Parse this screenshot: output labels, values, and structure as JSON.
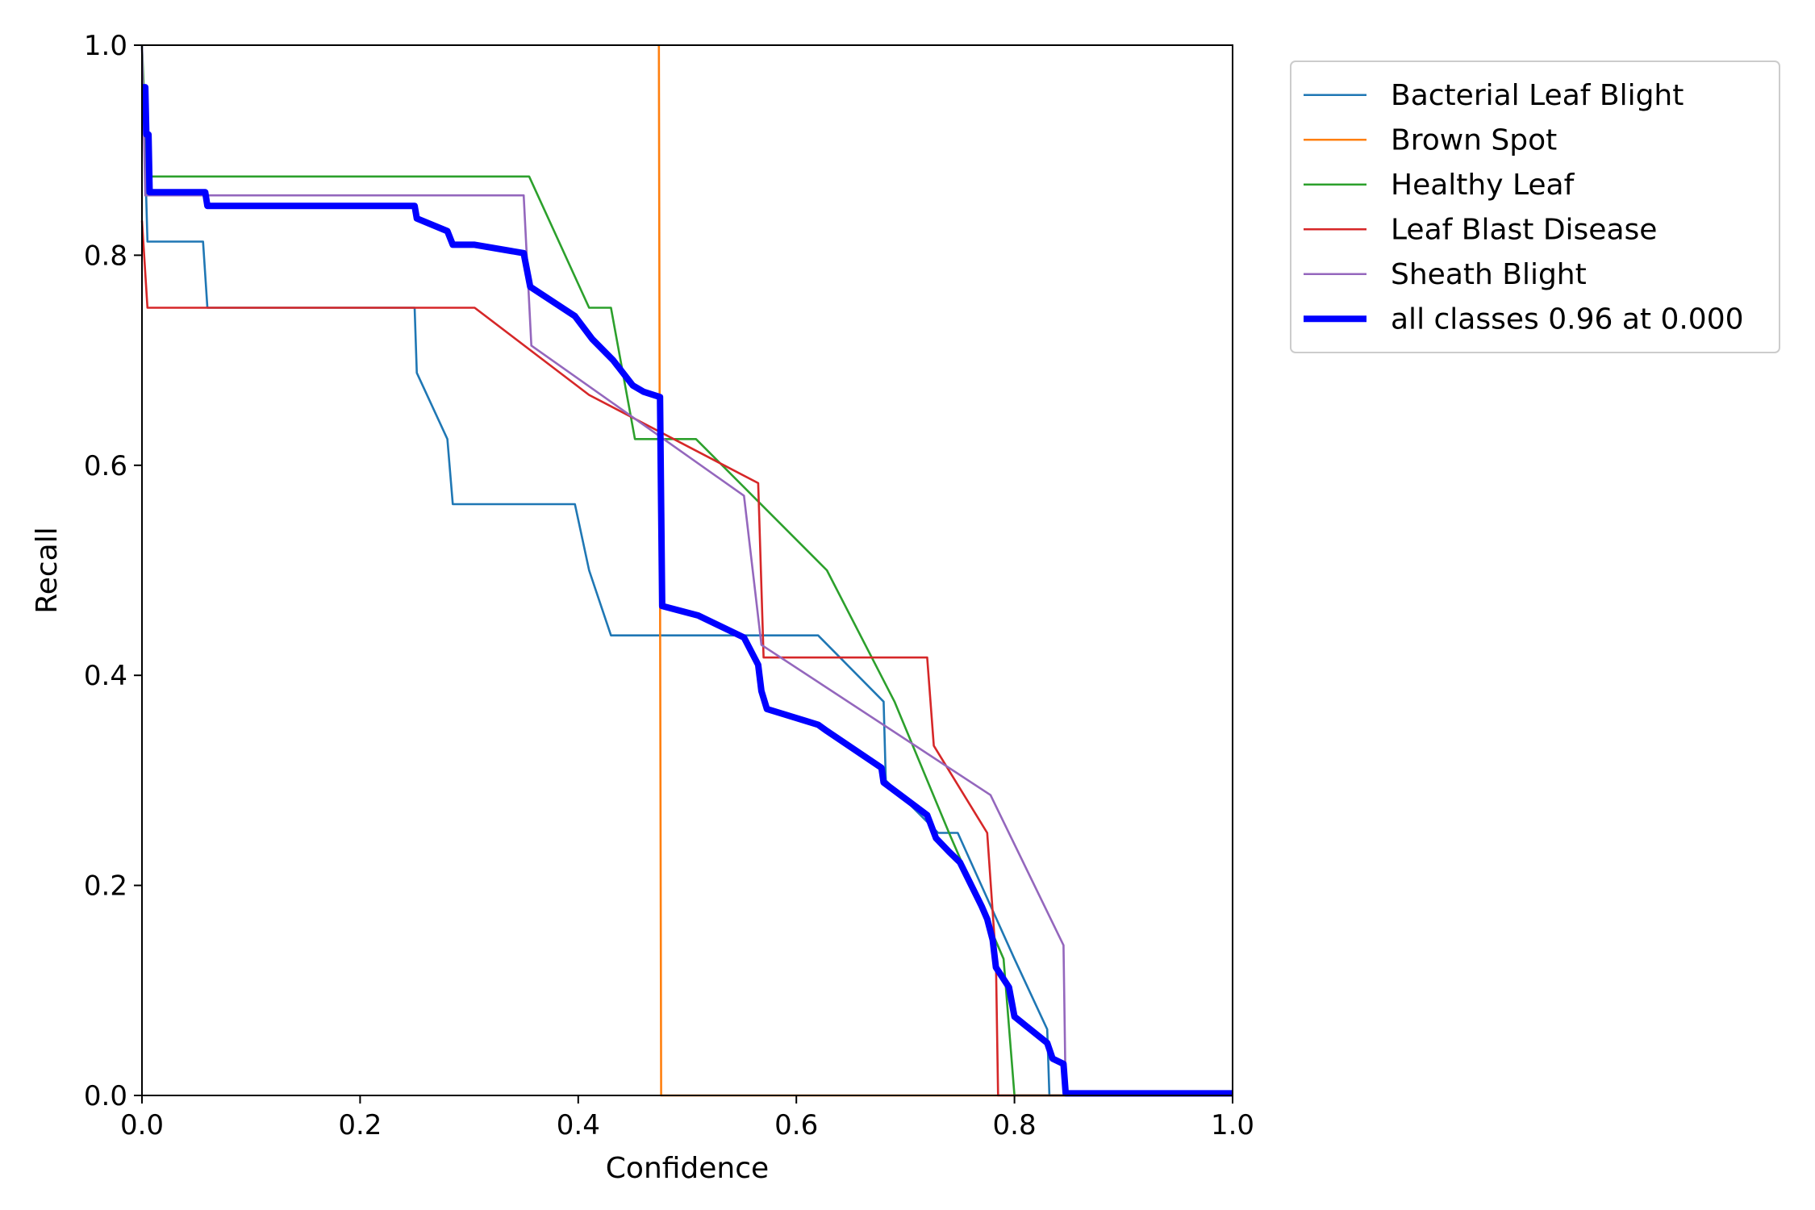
{
  "chart_data": {
    "type": "line",
    "title": "",
    "xlabel": "Confidence",
    "ylabel": "Recall",
    "xlim": [
      0.0,
      1.0
    ],
    "ylim": [
      0.0,
      1.0
    ],
    "grid": false,
    "legend_position": "outside-top-right",
    "x_ticks": [
      "0.0",
      "0.2",
      "0.4",
      "0.6",
      "0.8",
      "1.0"
    ],
    "y_ticks": [
      "0.0",
      "0.2",
      "0.4",
      "0.6",
      "0.8",
      "1.0"
    ],
    "series": [
      {
        "name": "Bacterial Leaf Blight",
        "color": "#1f77b4",
        "points": [
          [
            0.0,
            1.0
          ],
          [
            0.005,
            0.813
          ],
          [
            0.056,
            0.813
          ],
          [
            0.06,
            0.75
          ],
          [
            0.25,
            0.75
          ],
          [
            0.252,
            0.688
          ],
          [
            0.28,
            0.625
          ],
          [
            0.285,
            0.563
          ],
          [
            0.397,
            0.563
          ],
          [
            0.41,
            0.5
          ],
          [
            0.43,
            0.438
          ],
          [
            0.62,
            0.438
          ],
          [
            0.68,
            0.375
          ],
          [
            0.682,
            0.3
          ],
          [
            0.73,
            0.25
          ],
          [
            0.748,
            0.25
          ],
          [
            0.8,
            0.13
          ],
          [
            0.83,
            0.063
          ],
          [
            0.832,
            0.0
          ],
          [
            1.0,
            0.0
          ]
        ]
      },
      {
        "name": "Brown Spot",
        "color": "#ff7f0e",
        "points": [
          [
            0.474,
            1.0
          ],
          [
            0.476,
            0.0
          ],
          [
            1.0,
            0.0
          ]
        ]
      },
      {
        "name": "Healthy Leaf",
        "color": "#2ca02c",
        "points": [
          [
            0.0,
            1.0
          ],
          [
            0.005,
            0.875
          ],
          [
            0.355,
            0.875
          ],
          [
            0.41,
            0.75
          ],
          [
            0.43,
            0.75
          ],
          [
            0.452,
            0.625
          ],
          [
            0.508,
            0.625
          ],
          [
            0.628,
            0.5
          ],
          [
            0.69,
            0.375
          ],
          [
            0.74,
            0.25
          ],
          [
            0.79,
            0.13
          ],
          [
            0.8,
            0.0
          ],
          [
            1.0,
            0.0
          ]
        ]
      },
      {
        "name": "Leaf Blast Disease",
        "color": "#d62728",
        "points": [
          [
            0.0,
            0.833
          ],
          [
            0.005,
            0.75
          ],
          [
            0.305,
            0.75
          ],
          [
            0.41,
            0.667
          ],
          [
            0.565,
            0.583
          ],
          [
            0.57,
            0.417
          ],
          [
            0.72,
            0.417
          ],
          [
            0.726,
            0.333
          ],
          [
            0.775,
            0.25
          ],
          [
            0.783,
            0.13
          ],
          [
            0.785,
            0.0
          ],
          [
            1.0,
            0.0
          ]
        ]
      },
      {
        "name": "Sheath Blight",
        "color": "#9467bd",
        "points": [
          [
            0.0,
            1.0
          ],
          [
            0.003,
            0.857
          ],
          [
            0.35,
            0.857
          ],
          [
            0.357,
            0.714
          ],
          [
            0.552,
            0.571
          ],
          [
            0.568,
            0.429
          ],
          [
            0.778,
            0.286
          ],
          [
            0.845,
            0.143
          ],
          [
            0.847,
            0.0
          ],
          [
            1.0,
            0.0
          ]
        ]
      },
      {
        "name": "all classes 0.96 at 0.000",
        "color": "#0000ff",
        "thick": true,
        "points": [
          [
            0.0,
            0.96
          ],
          [
            0.003,
            0.96
          ],
          [
            0.004,
            0.915
          ],
          [
            0.006,
            0.915
          ],
          [
            0.007,
            0.86
          ],
          [
            0.058,
            0.86
          ],
          [
            0.06,
            0.847
          ],
          [
            0.25,
            0.847
          ],
          [
            0.252,
            0.835
          ],
          [
            0.28,
            0.823
          ],
          [
            0.285,
            0.81
          ],
          [
            0.305,
            0.81
          ],
          [
            0.35,
            0.802
          ],
          [
            0.356,
            0.77
          ],
          [
            0.397,
            0.742
          ],
          [
            0.413,
            0.72
          ],
          [
            0.432,
            0.7
          ],
          [
            0.45,
            0.676
          ],
          [
            0.46,
            0.67
          ],
          [
            0.475,
            0.665
          ],
          [
            0.477,
            0.466
          ],
          [
            0.51,
            0.457
          ],
          [
            0.552,
            0.436
          ],
          [
            0.565,
            0.41
          ],
          [
            0.568,
            0.385
          ],
          [
            0.573,
            0.368
          ],
          [
            0.62,
            0.353
          ],
          [
            0.628,
            0.347
          ],
          [
            0.678,
            0.312
          ],
          [
            0.68,
            0.298
          ],
          [
            0.72,
            0.267
          ],
          [
            0.728,
            0.245
          ],
          [
            0.74,
            0.232
          ],
          [
            0.75,
            0.222
          ],
          [
            0.77,
            0.18
          ],
          [
            0.775,
            0.168
          ],
          [
            0.78,
            0.148
          ],
          [
            0.783,
            0.122
          ],
          [
            0.795,
            0.103
          ],
          [
            0.8,
            0.075
          ],
          [
            0.83,
            0.05
          ],
          [
            0.835,
            0.035
          ],
          [
            0.845,
            0.03
          ],
          [
            0.847,
            0.002
          ],
          [
            1.0,
            0.002
          ]
        ]
      }
    ]
  }
}
